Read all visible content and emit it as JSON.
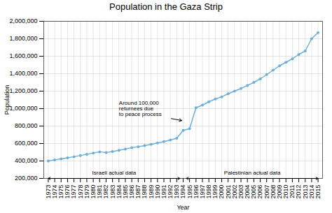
{
  "chart_data": {
    "type": "line",
    "title": "Population in the Gaza Strip",
    "xlabel": "Year",
    "ylabel": "Population",
    "x": [
      1973,
      1974,
      1975,
      1976,
      1977,
      1978,
      1979,
      1980,
      1981,
      1982,
      1983,
      1984,
      1985,
      1986,
      1987,
      1988,
      1989,
      1990,
      1991,
      1992,
      1993,
      1994,
      1995,
      1996,
      1997,
      1998,
      1999,
      2000,
      2001,
      2002,
      2003,
      2004,
      2005,
      2006,
      2007,
      2008,
      2009,
      2010,
      2011,
      2012,
      2013,
      2014,
      2015
    ],
    "values": [
      400000,
      413000,
      424000,
      436000,
      449000,
      463000,
      477000,
      491000,
      505000,
      497000,
      508000,
      522000,
      537000,
      553000,
      563000,
      576000,
      590000,
      606000,
      622000,
      640000,
      660000,
      750000,
      770000,
      1010000,
      1040000,
      1078000,
      1110000,
      1135000,
      1170000,
      1200000,
      1230000,
      1265000,
      1300000,
      1340000,
      1390000,
      1440000,
      1490000,
      1530000,
      1570000,
      1620000,
      1660000,
      1800000,
      1870000
    ],
    "color": "#6ab0d8",
    "marker": "circle",
    "grid": true,
    "xlim": [
      1972.3,
      2015.7
    ],
    "xticks": [
      1973,
      1974,
      1975,
      1976,
      1977,
      1978,
      1979,
      1980,
      1981,
      1982,
      1983,
      1984,
      1985,
      1986,
      1987,
      1988,
      1989,
      1990,
      1991,
      1992,
      1993,
      1994,
      1995,
      1996,
      1997,
      1998,
      1999,
      2000,
      2001,
      2002,
      2003,
      2004,
      2005,
      2006,
      2007,
      2008,
      2009,
      2010,
      2011,
      2012,
      2013,
      2014,
      2015
    ],
    "ylim": [
      200000,
      2000000
    ],
    "yticks": [
      {
        "value": 200000,
        "label": "200,000"
      },
      {
        "value": 400000,
        "label": "400,000"
      },
      {
        "value": 600000,
        "label": "600,000"
      },
      {
        "value": 800000,
        "label": "800,000"
      },
      {
        "value": 1000000,
        "label": "1,000,000"
      },
      {
        "value": 1200000,
        "label": "1,200,000"
      },
      {
        "value": 1400000,
        "label": "1,400,000"
      },
      {
        "value": 1600000,
        "label": "1,600,000"
      },
      {
        "value": 1800000,
        "label": "1,800,000"
      },
      {
        "value": 2000000,
        "label": "2,000,000"
      }
    ],
    "annotations": [
      {
        "text": "Around 100,000\nreturnees due\nto peace process",
        "x": 1994,
        "y": 860000,
        "text_x": 1984,
        "text_y": 1000000
      }
    ],
    "spans": [
      {
        "label": "Israeli actual data",
        "x_start": 1973,
        "x_end": 1993.5,
        "y": 200000
      },
      {
        "label": "Palestinian actual data",
        "x_start": 1994.5,
        "x_end": 2015,
        "y": 200000
      }
    ]
  }
}
